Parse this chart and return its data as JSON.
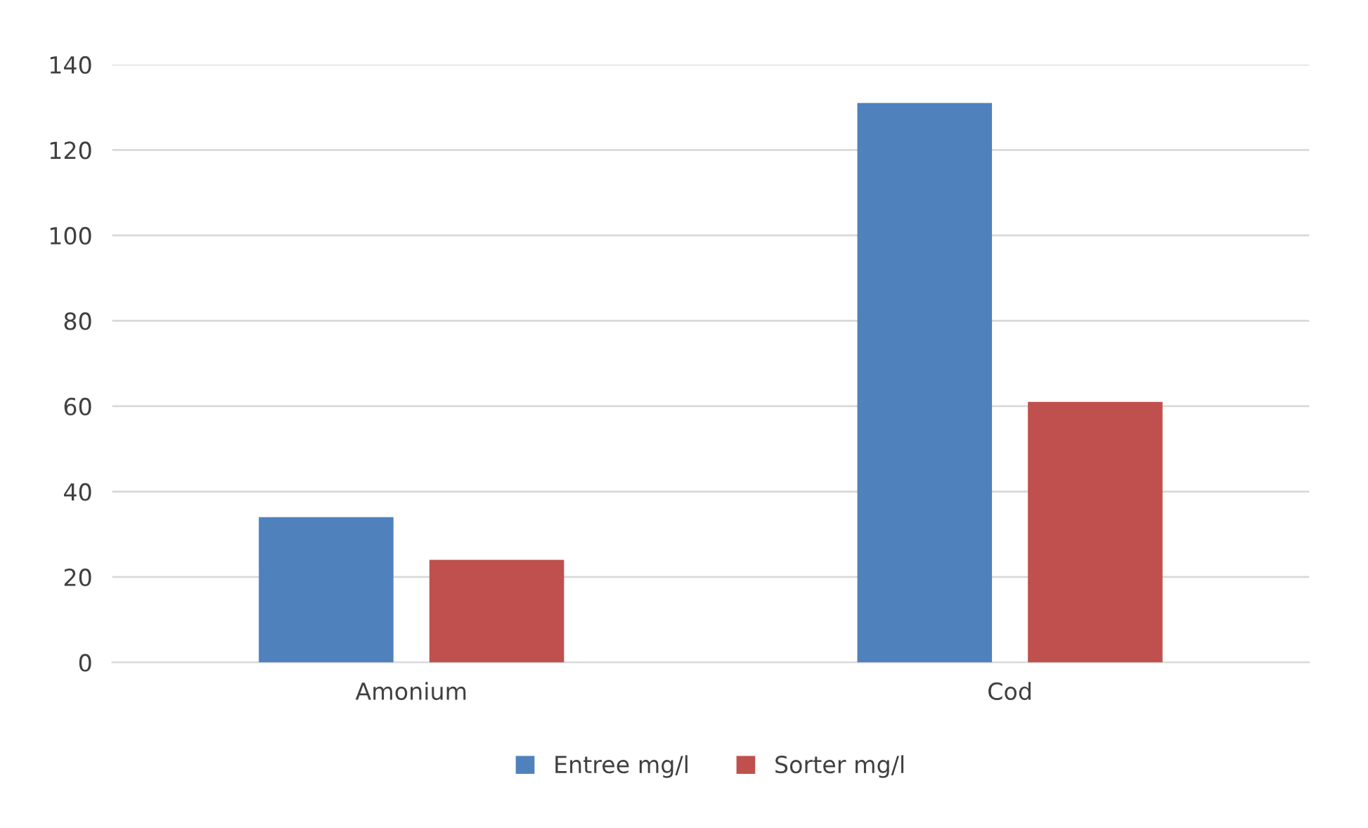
{
  "chart_data": {
    "type": "bar",
    "categories": [
      "Amonium",
      "Cod"
    ],
    "series": [
      {
        "name": "Entree mg/l",
        "color": "#4f81bd",
        "values": [
          34,
          131
        ]
      },
      {
        "name": "Sorter mg/l",
        "color": "#c0504d",
        "values": [
          24,
          61
        ]
      }
    ],
    "ylim": [
      0,
      140
    ],
    "yticks": [
      0,
      20,
      40,
      60,
      80,
      100,
      120,
      140
    ],
    "grid": "y",
    "legend": "bottom"
  }
}
